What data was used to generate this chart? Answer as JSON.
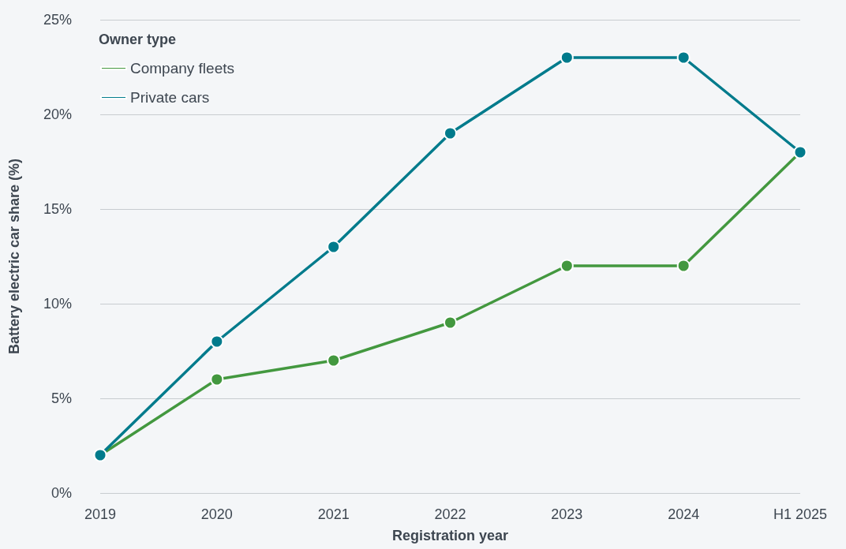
{
  "chart_data": {
    "type": "line",
    "xlabel": "Registration year",
    "ylabel": "Battery electric car share (%)",
    "legend_title": "Owner type",
    "categories": [
      "2019",
      "2020",
      "2021",
      "2022",
      "2023",
      "2024",
      "H1 2025"
    ],
    "series": [
      {
        "name": "Company fleets",
        "color": "#43983f",
        "values": [
          2,
          6,
          7,
          9,
          12,
          12,
          18
        ]
      },
      {
        "name": "Private cars",
        "color": "#007b8c",
        "values": [
          2,
          8,
          13,
          19,
          23,
          23,
          18
        ]
      }
    ],
    "ylim": [
      0,
      25
    ],
    "yticks": [
      {
        "value": 0,
        "label": "0%"
      },
      {
        "value": 5,
        "label": "5%"
      },
      {
        "value": 10,
        "label": "10%"
      },
      {
        "value": 15,
        "label": "15%"
      },
      {
        "value": 20,
        "label": "20%"
      },
      {
        "value": 25,
        "label": "25%"
      }
    ],
    "grid": "y",
    "legend": "top left",
    "marker": "circle",
    "line_style": "solid"
  }
}
